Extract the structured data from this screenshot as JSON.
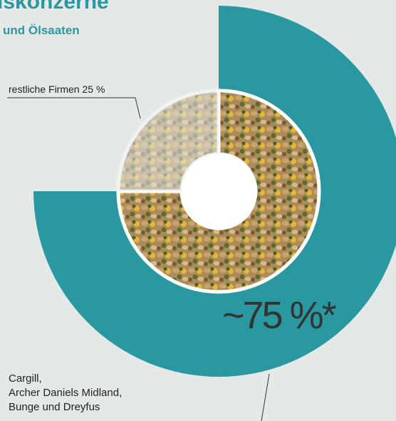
{
  "chart_data": {
    "type": "donut",
    "title": "iskonzerne",
    "subtitle": "und Ölsaaten",
    "categories": [
      "Cargill,\nArcher Daniels Midland,\nBunge und Dreyfus",
      "restliche Firmen"
    ],
    "values": [
      75,
      25
    ],
    "value_labels": [
      "~75 %*",
      "25 %"
    ],
    "colors": [
      "#2a98a0",
      "#e4e9e8"
    ]
  }
}
